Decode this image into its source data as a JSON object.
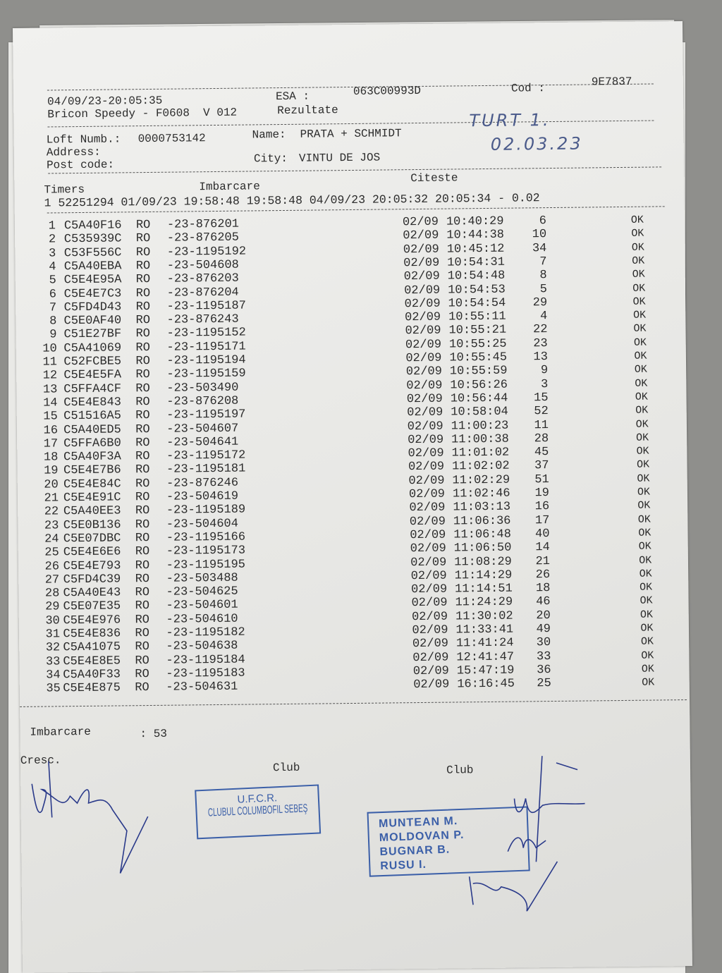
{
  "header": {
    "datetime": "04/09/23-20:05:35",
    "device": "Bricon Speedy - F0608  V 012",
    "esa_label": "ESA :",
    "esa_value": "063C00993D",
    "cod_label": "Cod :",
    "cod_value": "9E7837",
    "report_type": "Rezultate"
  },
  "loft": {
    "loft_label": "Loft Numb.:",
    "loft_number": "0000753142",
    "name_label": "Name:",
    "name": "PRATA + SCHMIDT",
    "address_label": "Address:",
    "post_code_label": "Post code:",
    "city_label": "City:",
    "city": "VINTU DE JOS"
  },
  "handwritten": {
    "race": "TURT 1.",
    "date": "02.03.23"
  },
  "timers": {
    "timers_label": "Timers",
    "imbarcare_label": "Imbarcare",
    "citeste_label": "Citeste",
    "line": "1 52251294 01/09/23 19:58:48 19:58:48 04/09/23 20:05:32 20:05:34 - 0.02"
  },
  "results": [
    {
      "n": "1",
      "chip": "C5A40F16",
      "country": "RO",
      "ring": "-23-876201",
      "date": "02/09",
      "time": "10:40:29",
      "seq": "6",
      "status": "OK"
    },
    {
      "n": "2",
      "chip": "C535939C",
      "country": "RO",
      "ring": "-23-876205",
      "date": "02/09",
      "time": "10:44:38",
      "seq": "10",
      "status": "OK"
    },
    {
      "n": "3",
      "chip": "C53F556C",
      "country": "RO",
      "ring": "-23-1195192",
      "date": "02/09",
      "time": "10:45:12",
      "seq": "34",
      "status": "OK"
    },
    {
      "n": "4",
      "chip": "C5A40EBA",
      "country": "RO",
      "ring": "-23-504608",
      "date": "02/09",
      "time": "10:54:31",
      "seq": "7",
      "status": "OK"
    },
    {
      "n": "5",
      "chip": "C5E4E95A",
      "country": "RO",
      "ring": "-23-876203",
      "date": "02/09",
      "time": "10:54:48",
      "seq": "8",
      "status": "OK"
    },
    {
      "n": "6",
      "chip": "C5E4E7C3",
      "country": "RO",
      "ring": "-23-876204",
      "date": "02/09",
      "time": "10:54:53",
      "seq": "5",
      "status": "OK"
    },
    {
      "n": "7",
      "chip": "C5FD4D43",
      "country": "RO",
      "ring": "-23-1195187",
      "date": "02/09",
      "time": "10:54:54",
      "seq": "29",
      "status": "OK"
    },
    {
      "n": "8",
      "chip": "C5E0AF40",
      "country": "RO",
      "ring": "-23-876243",
      "date": "02/09",
      "time": "10:55:11",
      "seq": "4",
      "status": "OK"
    },
    {
      "n": "9",
      "chip": "C51E27BF",
      "country": "RO",
      "ring": "-23-1195152",
      "date": "02/09",
      "time": "10:55:21",
      "seq": "22",
      "status": "OK"
    },
    {
      "n": "10",
      "chip": "C5A41069",
      "country": "RO",
      "ring": "-23-1195171",
      "date": "02/09",
      "time": "10:55:25",
      "seq": "23",
      "status": "OK"
    },
    {
      "n": "11",
      "chip": "C52FCBE5",
      "country": "RO",
      "ring": "-23-1195194",
      "date": "02/09",
      "time": "10:55:45",
      "seq": "13",
      "status": "OK"
    },
    {
      "n": "12",
      "chip": "C5E4E5FA",
      "country": "RO",
      "ring": "-23-1195159",
      "date": "02/09",
      "time": "10:55:59",
      "seq": "9",
      "status": "OK"
    },
    {
      "n": "13",
      "chip": "C5FFA4CF",
      "country": "RO",
      "ring": "-23-503490",
      "date": "02/09",
      "time": "10:56:26",
      "seq": "3",
      "status": "OK"
    },
    {
      "n": "14",
      "chip": "C5E4E843",
      "country": "RO",
      "ring": "-23-876208",
      "date": "02/09",
      "time": "10:56:44",
      "seq": "15",
      "status": "OK"
    },
    {
      "n": "15",
      "chip": "C51516A5",
      "country": "RO",
      "ring": "-23-1195197",
      "date": "02/09",
      "time": "10:58:04",
      "seq": "52",
      "status": "OK"
    },
    {
      "n": "16",
      "chip": "C5A40ED5",
      "country": "RO",
      "ring": "-23-504607",
      "date": "02/09",
      "time": "11:00:23",
      "seq": "11",
      "status": "OK"
    },
    {
      "n": "17",
      "chip": "C5FFA6B0",
      "country": "RO",
      "ring": "-23-504641",
      "date": "02/09",
      "time": "11:00:38",
      "seq": "28",
      "status": "OK"
    },
    {
      "n": "18",
      "chip": "C5A40F3A",
      "country": "RO",
      "ring": "-23-1195172",
      "date": "02/09",
      "time": "11:01:02",
      "seq": "45",
      "status": "OK"
    },
    {
      "n": "19",
      "chip": "C5E4E7B6",
      "country": "RO",
      "ring": "-23-1195181",
      "date": "02/09",
      "time": "11:02:02",
      "seq": "37",
      "status": "OK"
    },
    {
      "n": "20",
      "chip": "C5E4E84C",
      "country": "RO",
      "ring": "-23-876246",
      "date": "02/09",
      "time": "11:02:29",
      "seq": "51",
      "status": "OK"
    },
    {
      "n": "21",
      "chip": "C5E4E91C",
      "country": "RO",
      "ring": "-23-504619",
      "date": "02/09",
      "time": "11:02:46",
      "seq": "19",
      "status": "OK"
    },
    {
      "n": "22",
      "chip": "C5A40EE3",
      "country": "RO",
      "ring": "-23-1195189",
      "date": "02/09",
      "time": "11:03:13",
      "seq": "16",
      "status": "OK"
    },
    {
      "n": "23",
      "chip": "C5E0B136",
      "country": "RO",
      "ring": "-23-504604",
      "date": "02/09",
      "time": "11:06:36",
      "seq": "17",
      "status": "OK"
    },
    {
      "n": "24",
      "chip": "C5E07DBC",
      "country": "RO",
      "ring": "-23-1195166",
      "date": "02/09",
      "time": "11:06:48",
      "seq": "40",
      "status": "OK"
    },
    {
      "n": "25",
      "chip": "C5E4E6E6",
      "country": "RO",
      "ring": "-23-1195173",
      "date": "02/09",
      "time": "11:06:50",
      "seq": "14",
      "status": "OK"
    },
    {
      "n": "26",
      "chip": "C5E4E793",
      "country": "RO",
      "ring": "-23-1195195",
      "date": "02/09",
      "time": "11:08:29",
      "seq": "21",
      "status": "OK"
    },
    {
      "n": "27",
      "chip": "C5FD4C39",
      "country": "RO",
      "ring": "-23-503488",
      "date": "02/09",
      "time": "11:14:29",
      "seq": "26",
      "status": "OK"
    },
    {
      "n": "28",
      "chip": "C5A40E43",
      "country": "RO",
      "ring": "-23-504625",
      "date": "02/09",
      "time": "11:14:51",
      "seq": "18",
      "status": "OK"
    },
    {
      "n": "29",
      "chip": "C5E07E35",
      "country": "RO",
      "ring": "-23-504601",
      "date": "02/09",
      "time": "11:24:29",
      "seq": "46",
      "status": "OK"
    },
    {
      "n": "30",
      "chip": "C5E4E976",
      "country": "RO",
      "ring": "-23-504610",
      "date": "02/09",
      "time": "11:30:02",
      "seq": "20",
      "status": "OK"
    },
    {
      "n": "31",
      "chip": "C5E4E836",
      "country": "RO",
      "ring": "-23-1195182",
      "date": "02/09",
      "time": "11:33:41",
      "seq": "49",
      "status": "OK"
    },
    {
      "n": "32",
      "chip": "C5A41075",
      "country": "RO",
      "ring": "-23-504638",
      "date": "02/09",
      "time": "11:41:24",
      "seq": "30",
      "status": "OK"
    },
    {
      "n": "33",
      "chip": "C5E4E8E5",
      "country": "RO",
      "ring": "-23-1195184",
      "date": "02/09",
      "time": "12:41:47",
      "seq": "33",
      "status": "OK"
    },
    {
      "n": "34",
      "chip": "C5A40F33",
      "country": "RO",
      "ring": "-23-1195183",
      "date": "02/09",
      "time": "15:47:19",
      "seq": "36",
      "status": "OK"
    },
    {
      "n": "35",
      "chip": "C5E4E875",
      "country": "RO",
      "ring": "-23-504631",
      "date": "02/09",
      "time": "16:16:45",
      "seq": "25",
      "status": "OK"
    }
  ],
  "footer": {
    "imbarcare_label": "Imbarcare",
    "imbarcare_value": ": 53",
    "cresc_label": "Cresc.",
    "club_label_1": "Club",
    "club_label_2": "Club"
  },
  "stamps": {
    "club_stamp": [
      "U.F.C.R.",
      "CLUBUL COLUMBOFIL SEBEŞ"
    ],
    "committee_stamp": [
      "MUNTEAN M.",
      "MOLDOVAN P.",
      "BUGNAR B.",
      "RUSU I."
    ]
  },
  "colors": {
    "ink": "#2b2b2b",
    "stamp": "#3b5fa8",
    "pen": "#2a3a8a"
  }
}
